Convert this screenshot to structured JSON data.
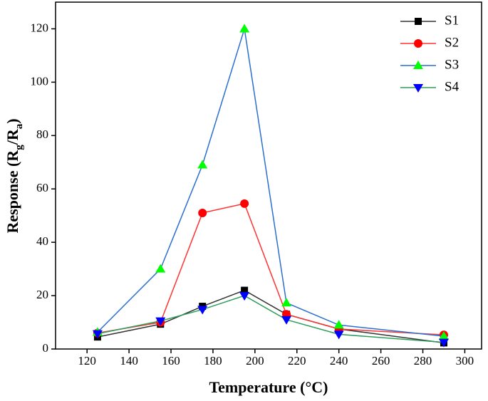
{
  "chart_data": {
    "type": "line",
    "x_label": "Temperature (°C)",
    "y_label": [
      "Response (R",
      "g",
      "/R",
      "a",
      ")"
    ],
    "x": [
      125,
      155,
      175,
      195,
      215,
      240,
      290
    ],
    "series": [
      {
        "name": "S1",
        "color": "#333333",
        "marker": "square",
        "marker_color": "#000000",
        "values": [
          4.5,
          9.3,
          16,
          22,
          13,
          7.5,
          2.3
        ]
      },
      {
        "name": "S2",
        "color": "#ff3333",
        "marker": "circle",
        "marker_color": "#ff0000",
        "values": [
          6,
          10,
          51,
          54.5,
          13,
          7.5,
          5.3
        ]
      },
      {
        "name": "S3",
        "color": "#2a6fd1",
        "marker": "triangle-up",
        "marker_color": "#00ff00",
        "values": [
          6.3,
          30,
          69,
          120,
          17.3,
          9,
          4.8
        ]
      },
      {
        "name": "S4",
        "color": "#2e9e5b",
        "marker": "triangle-down",
        "marker_color": "#0000ff",
        "values": [
          5.7,
          10.5,
          14.8,
          20,
          11,
          5.5,
          2.5
        ]
      }
    ],
    "xlim": [
      105,
      308
    ],
    "xticks": [
      120,
      140,
      160,
      180,
      200,
      220,
      240,
      260,
      280,
      300
    ],
    "ylim": [
      0,
      130
    ],
    "yticks": [
      0,
      20,
      40,
      60,
      80,
      100,
      120
    ],
    "legend": "upper-right",
    "grid": false
  }
}
